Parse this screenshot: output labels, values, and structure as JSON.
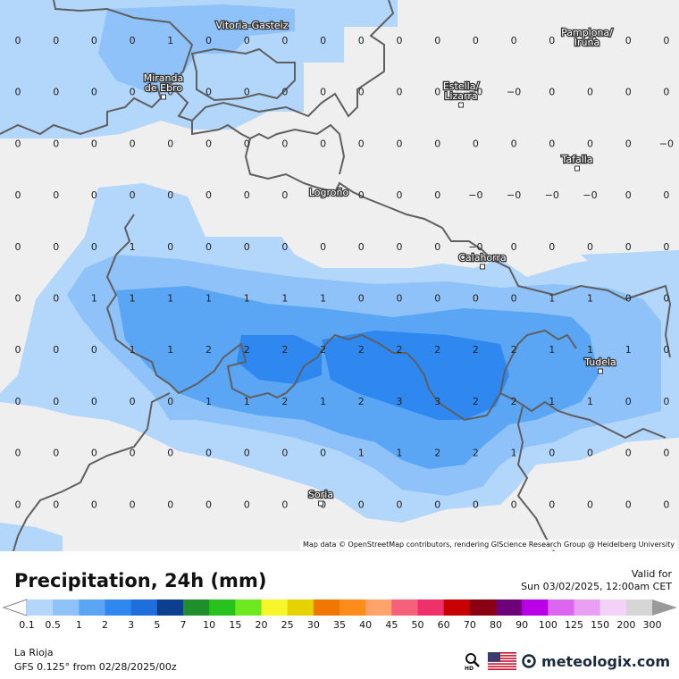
{
  "title": "Precipitation, 24h (mm)",
  "valid_label": "Valid for",
  "valid_time": "Sun 03/02/2025, 12:00am CET",
  "region": "La Rioja",
  "model": "GFS 0.125° from  02/28/2025/00z",
  "attribution": "Map data © OpenStreetMap contributors, rendering GIScience Research Group @ Heidelberg University",
  "brand": "meteologix.com",
  "icons": [
    "search-hd-icon",
    "us-flag-icon",
    "meteologix-logo-icon"
  ],
  "cities": [
    {
      "name": "Vitoria-Gasteiz",
      "lines": [
        "Vitoria-Gasteiz"
      ]
    },
    {
      "name": "Pamplona/Iruña",
      "lines": [
        "Pamplona/",
        "Iruña"
      ]
    },
    {
      "name": "Miranda de Ebro",
      "lines": [
        "Miranda",
        "de Ebro"
      ]
    },
    {
      "name": "Estella/Lizarra",
      "lines": [
        "Estella/",
        "Lizarra"
      ]
    },
    {
      "name": "Tafalla",
      "lines": [
        "Tafalla"
      ]
    },
    {
      "name": "Logroño",
      "lines": [
        "Logroño"
      ]
    },
    {
      "name": "Calahorra",
      "lines": [
        "Calahorra"
      ]
    },
    {
      "name": "Tudela",
      "lines": [
        "Tudela"
      ]
    },
    {
      "name": "Soria",
      "lines": [
        "Soria"
      ]
    }
  ],
  "grid_values": [
    [
      "0",
      "0",
      "0",
      "0",
      "1",
      "0",
      "0",
      "0",
      "0",
      "0",
      "0",
      "0",
      "0",
      "0",
      "0",
      "−0",
      "0",
      "0"
    ],
    [
      "0",
      "0",
      "0",
      "0",
      "0",
      "0",
      "0",
      "0",
      "0",
      "0",
      "0",
      "0",
      "−0",
      "−0",
      "0",
      "0",
      "0",
      "0"
    ],
    [
      "0",
      "0",
      "0",
      "0",
      "0",
      "0",
      "0",
      "0",
      "0",
      "0",
      "0",
      "0",
      "0",
      "0",
      "0",
      "0",
      "0",
      "−0"
    ],
    [
      "0",
      "0",
      "0",
      "0",
      "0",
      "0",
      "0",
      "0",
      "0",
      "0",
      "0",
      "0",
      "−0",
      "−0",
      "−0",
      "−0",
      "0",
      "0"
    ],
    [
      "0",
      "0",
      "0",
      "1",
      "0",
      "0",
      "0",
      "0",
      "0",
      "0",
      "0",
      "0",
      "−0",
      "0",
      "0",
      "0",
      "0",
      "0"
    ],
    [
      "0",
      "0",
      "1",
      "1",
      "1",
      "1",
      "1",
      "1",
      "1",
      "0",
      "0",
      "0",
      "0",
      "0",
      "1",
      "1",
      "0",
      "0"
    ],
    [
      "0",
      "0",
      "0",
      "1",
      "1",
      "2",
      "2",
      "2",
      "2",
      "2",
      "2",
      "2",
      "2",
      "2",
      "1",
      "1",
      "1",
      "0"
    ],
    [
      "0",
      "0",
      "0",
      "0",
      "0",
      "1",
      "1",
      "2",
      "1",
      "2",
      "3",
      "3",
      "2",
      "2",
      "1",
      "1",
      "0",
      "0"
    ],
    [
      "0",
      "0",
      "0",
      "0",
      "0",
      "0",
      "0",
      "0",
      "0",
      "1",
      "1",
      "2",
      "2",
      "1",
      "0",
      "0",
      "0",
      "0"
    ],
    [
      "0",
      "0",
      "0",
      "0",
      "0",
      "0",
      "0",
      "0",
      "0",
      "0",
      "0",
      "0",
      "0",
      "0",
      "0",
      "0",
      "0",
      "0"
    ]
  ],
  "legend": {
    "labels": [
      "0.1",
      "0.5",
      "1",
      "2",
      "3",
      "5",
      "7",
      "10",
      "15",
      "20",
      "25",
      "30",
      "35",
      "40",
      "45",
      "50",
      "60",
      "70",
      "80",
      "90",
      "100",
      "125",
      "150",
      "200",
      "300"
    ],
    "colors": [
      "#b3d6fb",
      "#8ec2f8",
      "#5aa6f4",
      "#2f88f0",
      "#1e6fdb",
      "#0d3f8f",
      "#1e8f2a",
      "#27c21b",
      "#6ee81f",
      "#f6f62a",
      "#e6d200",
      "#f07800",
      "#ff8c1a",
      "#ffa36b",
      "#f5607a",
      "#f0306a",
      "#c80000",
      "#8a0012",
      "#6e0078",
      "#b900e6",
      "#dd66f0",
      "#e9a0f3",
      "#f4d2f7",
      "#d6d6d6"
    ],
    "below_color": "#ffffff",
    "above_color": "#9a9a9a"
  },
  "colors": {
    "land": "#efefef",
    "border": "#5f5f5f",
    "level_0_1": "#b3d6fb",
    "level_0_5": "#8ec2f8",
    "level_1": "#5aa6f4",
    "level_2": "#2f88f0"
  }
}
